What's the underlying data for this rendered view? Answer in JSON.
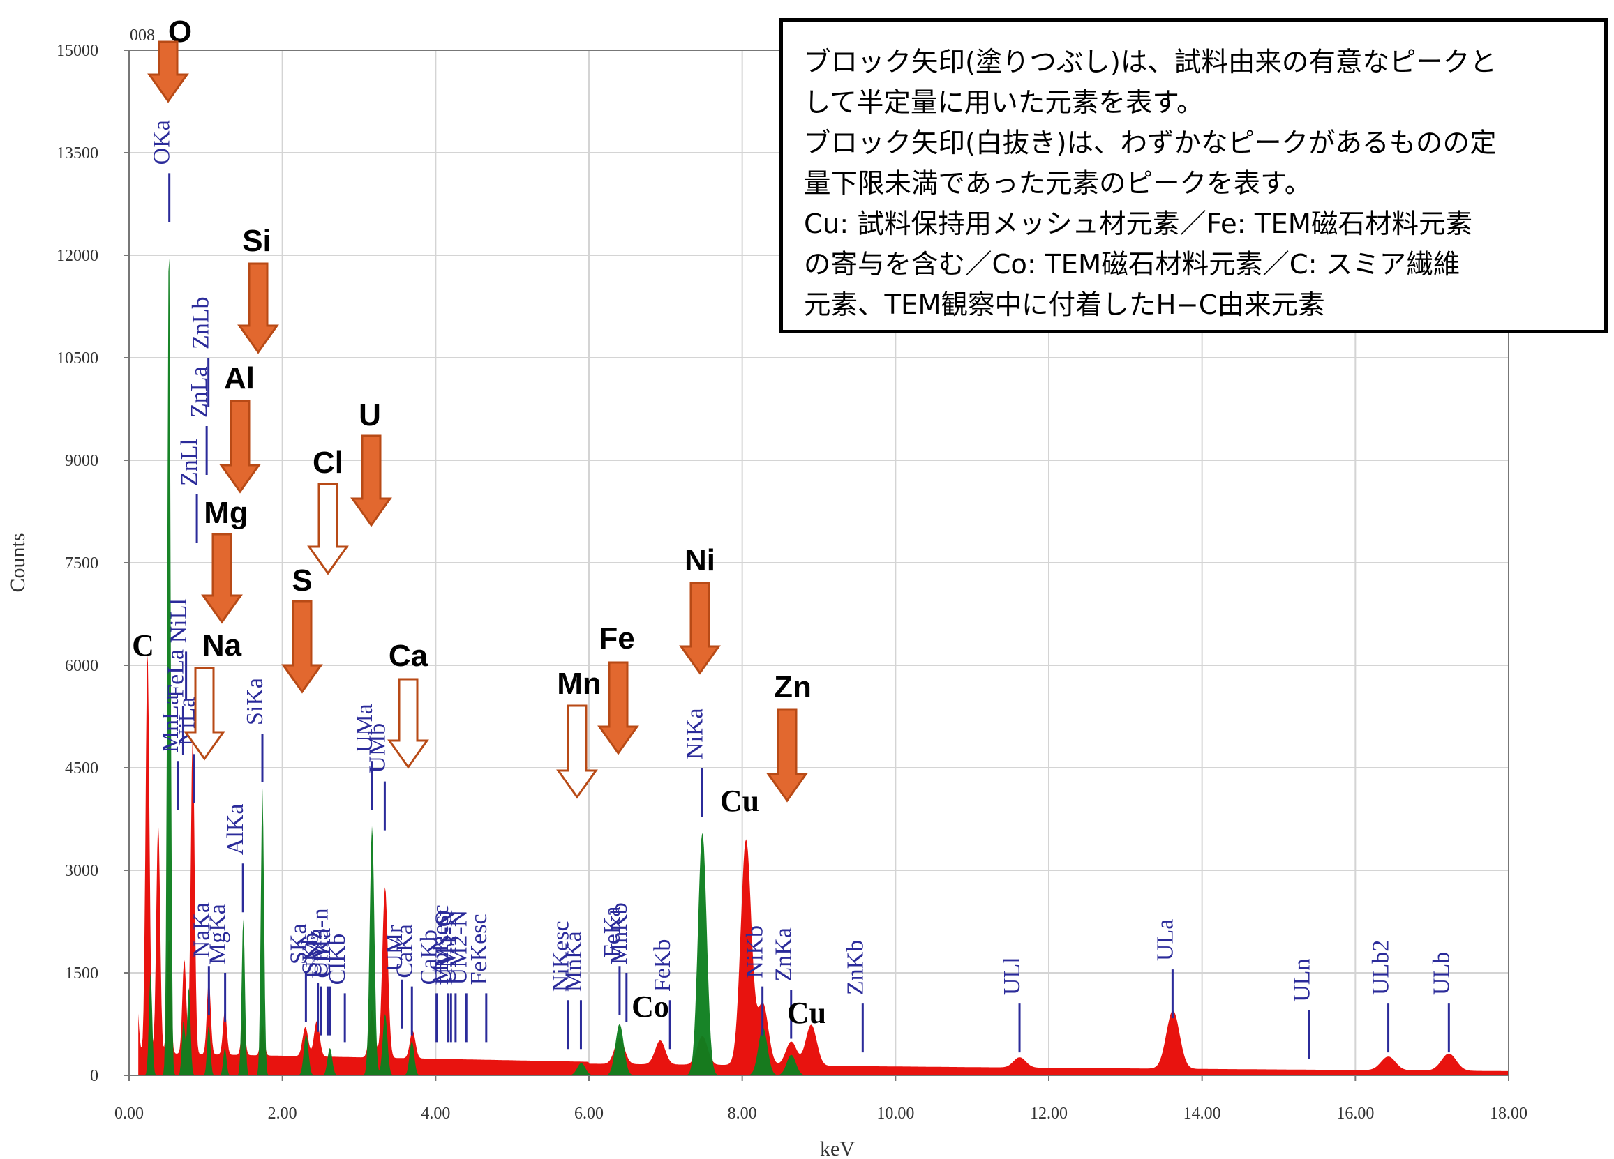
{
  "chart_data": {
    "type": "area",
    "xlabel": "keV",
    "ylabel": "Counts",
    "xlim": [
      0,
      18
    ],
    "ylim": [
      0,
      15000
    ],
    "x_ticks": [
      "0.00",
      "2.00",
      "4.00",
      "6.00",
      "8.00",
      "10.00",
      "12.00",
      "14.00",
      "16.00",
      "18.00"
    ],
    "y_ticks": [
      "0",
      "1500",
      "3000",
      "4500",
      "6000",
      "7500",
      "9000",
      "10500",
      "12000",
      "13500",
      "15000"
    ],
    "corner_label": "008",
    "grid": true,
    "colors": {
      "spectrum": "#e8130f",
      "fitted_peaks": "#0f7f1f",
      "line_marker": "#2b2b9a",
      "filled_arrow": "#e2682f",
      "arrow_edge": "#b84a16"
    },
    "series": [
      {
        "color": "#e8130f",
        "peaks": [
          {
            "x": 0.1,
            "y": 800
          },
          {
            "x": 0.24,
            "y": 5900
          },
          {
            "x": 0.38,
            "y": 3400
          },
          {
            "x": 0.52,
            "y": 1700
          },
          {
            "x": 0.72,
            "y": 1400
          },
          {
            "x": 0.83,
            "y": 4700
          },
          {
            "x": 1.04,
            "y": 1100
          },
          {
            "x": 1.25,
            "y": 650
          },
          {
            "x": 1.49,
            "y": 520
          },
          {
            "x": 1.74,
            "y": 450
          },
          {
            "x": 2.3,
            "y": 430
          },
          {
            "x": 2.45,
            "y": 520
          },
          {
            "x": 3.17,
            "y": 700
          },
          {
            "x": 3.34,
            "y": 2500
          },
          {
            "x": 3.7,
            "y": 400
          },
          {
            "x": 6.4,
            "y": 380
          },
          {
            "x": 6.93,
            "y": 350
          },
          {
            "x": 7.48,
            "y": 420
          },
          {
            "x": 8.05,
            "y": 3300
          },
          {
            "x": 8.27,
            "y": 900
          },
          {
            "x": 8.64,
            "y": 350
          },
          {
            "x": 8.9,
            "y": 600
          },
          {
            "x": 11.62,
            "y": 150
          },
          {
            "x": 13.62,
            "y": 850
          },
          {
            "x": 16.43,
            "y": 200
          },
          {
            "x": 17.22,
            "y": 250
          }
        ]
      },
      {
        "color": "#0f7f1f",
        "peaks": [
          {
            "x": 0.28,
            "y": 1500
          },
          {
            "x": 0.52,
            "y": 12300
          },
          {
            "x": 0.71,
            "y": 800
          },
          {
            "x": 0.78,
            "y": 1300
          },
          {
            "x": 1.04,
            "y": 750
          },
          {
            "x": 1.25,
            "y": 400
          },
          {
            "x": 1.49,
            "y": 2300
          },
          {
            "x": 1.74,
            "y": 4200
          },
          {
            "x": 2.31,
            "y": 600
          },
          {
            "x": 2.62,
            "y": 400
          },
          {
            "x": 3.17,
            "y": 3650
          },
          {
            "x": 3.34,
            "y": 900
          },
          {
            "x": 3.69,
            "y": 500
          },
          {
            "x": 5.9,
            "y": 180
          },
          {
            "x": 6.4,
            "y": 750
          },
          {
            "x": 7.48,
            "y": 3550
          },
          {
            "x": 8.27,
            "y": 700
          },
          {
            "x": 8.64,
            "y": 300
          }
        ]
      }
    ],
    "line_markers": [
      {
        "label": "OKa",
        "x": 0.525,
        "y_top": 13200
      },
      {
        "label": "NiLa",
        "x": 0.85,
        "y_top": 4700
      },
      {
        "label": "FeLa",
        "x": 0.705,
        "y_top": 5400
      },
      {
        "label": "MnLa",
        "x": 0.637,
        "y_top": 4600
      },
      {
        "label": "ZnLa",
        "x": 1.012,
        "y_top": 9500
      },
      {
        "label": "ZnLb",
        "x": 1.035,
        "y_top": 10500
      },
      {
        "label": "ZnLl",
        "x": 0.884,
        "y_top": 8500
      },
      {
        "label": "NiLl",
        "x": 0.743,
        "y_top": 6200
      },
      {
        "label": "NaKa",
        "x": 1.041,
        "y_top": 1600
      },
      {
        "label": "MgKa",
        "x": 1.253,
        "y_top": 1500
      },
      {
        "label": "AlKa",
        "x": 1.486,
        "y_top": 3100
      },
      {
        "label": "SiKa",
        "x": 1.739,
        "y_top": 5000
      },
      {
        "label": "SKa",
        "x": 2.307,
        "y_top": 1500
      },
      {
        "label": "SKb",
        "x": 2.464,
        "y_top": 1350
      },
      {
        "label": "ClKa",
        "x": 2.621,
        "y_top": 1300
      },
      {
        "label": "ClKb",
        "x": 2.815,
        "y_top": 1200
      },
      {
        "label": "UMz",
        "x": 2.507,
        "y_top": 1300
      },
      {
        "label": "UM3-n",
        "x": 2.59,
        "y_top": 1300
      },
      {
        "label": "UMa",
        "x": 3.17,
        "y_top": 4600
      },
      {
        "label": "UMb",
        "x": 3.336,
        "y_top": 4300
      },
      {
        "label": "UMr",
        "x": 3.56,
        "y_top": 1400
      },
      {
        "label": "CaKa",
        "x": 3.69,
        "y_top": 1300
      },
      {
        "label": "CaKb",
        "x": 4.012,
        "y_top": 1200
      },
      {
        "label": "MnKesc",
        "x": 4.16,
        "y_top": 1200
      },
      {
        "label": "UM3-O",
        "x": 4.2,
        "y_top": 1200
      },
      {
        "label": "UM1-N",
        "x": 4.26,
        "y_top": 1200
      },
      {
        "label": "UM2-N",
        "x": 4.4,
        "y_top": 1200
      },
      {
        "label": "FeKesc",
        "x": 4.66,
        "y_top": 1200
      },
      {
        "label": "MnKa",
        "x": 5.895,
        "y_top": 1100
      },
      {
        "label": "NiKesc",
        "x": 5.73,
        "y_top": 1100
      },
      {
        "label": "FeKa",
        "x": 6.4,
        "y_top": 1600
      },
      {
        "label": "MnKb",
        "x": 6.49,
        "y_top": 1500
      },
      {
        "label": "FeKb",
        "x": 7.058,
        "y_top": 1100
      },
      {
        "label": "NiKa",
        "x": 7.478,
        "y_top": 4500
      },
      {
        "label": "NiKb",
        "x": 8.264,
        "y_top": 1300
      },
      {
        "label": "ZnKa",
        "x": 8.638,
        "y_top": 1250
      },
      {
        "label": "ZnKb",
        "x": 9.572,
        "y_top": 1050
      },
      {
        "label": "ULl",
        "x": 11.618,
        "y_top": 1050
      },
      {
        "label": "ULa",
        "x": 13.615,
        "y_top": 1550
      },
      {
        "label": "ULn",
        "x": 15.4,
        "y_top": 950
      },
      {
        "label": "ULb2",
        "x": 16.43,
        "y_top": 1050
      },
      {
        "label": "ULb",
        "x": 17.22,
        "y_top": 1050
      }
    ],
    "element_callouts": [
      {
        "label": "O",
        "arrow": "filled"
      },
      {
        "label": "Si",
        "arrow": "filled"
      },
      {
        "label": "Al",
        "arrow": "filled"
      },
      {
        "label": "Mg",
        "arrow": "filled"
      },
      {
        "label": "Na",
        "arrow": "outline"
      },
      {
        "label": "C",
        "arrow": "none"
      },
      {
        "label": "S",
        "arrow": "filled"
      },
      {
        "label": "Cl",
        "arrow": "outline"
      },
      {
        "label": "U",
        "arrow": "filled"
      },
      {
        "label": "Ca",
        "arrow": "outline"
      },
      {
        "label": "Mn",
        "arrow": "outline"
      },
      {
        "label": "Fe",
        "arrow": "filled"
      },
      {
        "label": "Ni",
        "arrow": "filled"
      },
      {
        "label": "Zn",
        "arrow": "filled"
      },
      {
        "label": "Cu",
        "arrow": "none"
      },
      {
        "label": "Co",
        "arrow": "none"
      },
      {
        "label": "Cu",
        "arrow": "none"
      }
    ]
  },
  "note": {
    "lines": [
      "ブロック矢印(塗りつぶし)は、試料由来の有意なピークと",
      "して半定量に用いた元素を表す。",
      "ブロック矢印(白抜き)は、わずかなピークがあるものの定",
      "量下限未満であった元素のピークを表す。",
      "Cu: 試料保持用メッシュ材元素／Fe: TEM磁石材料元素",
      "の寄与を含む／Co: TEM磁石材料元素／C: スミア繊維",
      "元素、TEM観察中に付着したH−C由来元素"
    ]
  }
}
